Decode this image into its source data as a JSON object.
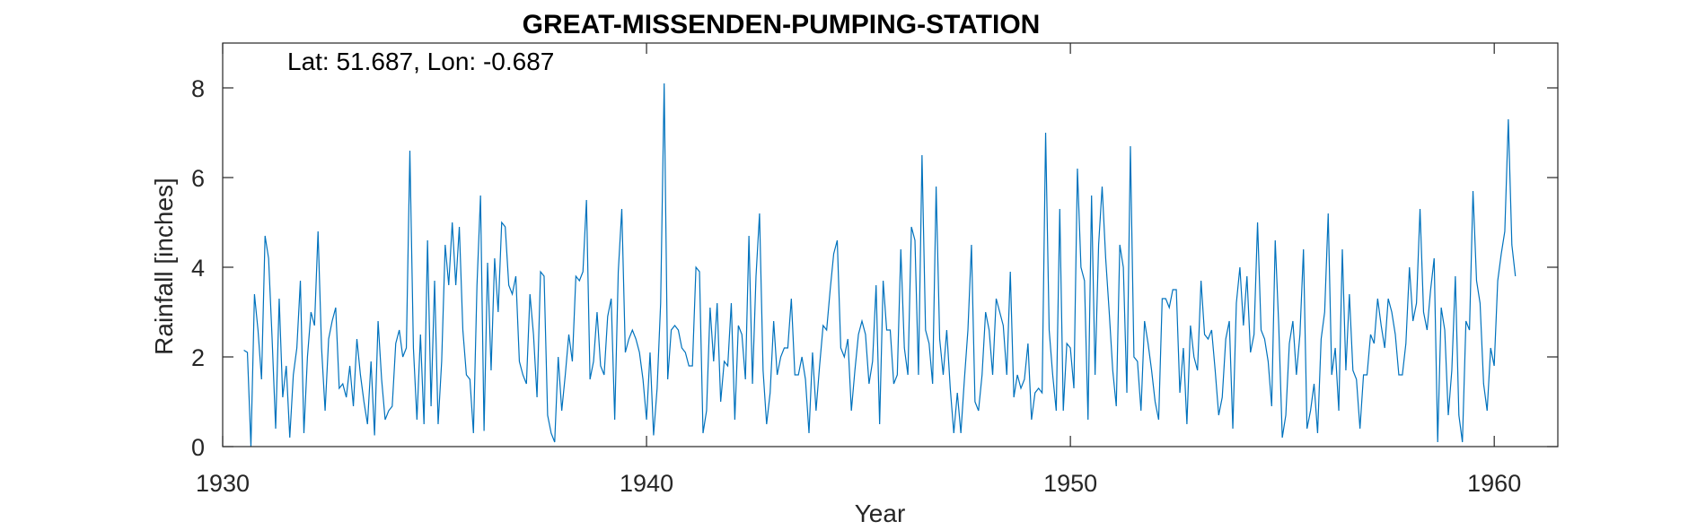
{
  "chart_data": {
    "type": "line",
    "title": "GREAT-MISSENDEN-PUMPING-STATION",
    "xlabel": "Year",
    "ylabel": "Rainfall [inches]",
    "annotation": "Lat: 51.687, Lon: -0.687",
    "xlim": [
      1930,
      1961.5
    ],
    "ylim": [
      0,
      9
    ],
    "xticks": [
      1930,
      1940,
      1950,
      1960
    ],
    "yticks": [
      0,
      2,
      4,
      6,
      8
    ],
    "grid": false,
    "box": true,
    "x_start": 1930.5,
    "x_step": 0.08333,
    "series": [
      {
        "color": "#0072BD",
        "values": [
          2.15,
          2.1,
          0.0,
          3.4,
          2.6,
          1.5,
          4.7,
          4.2,
          2.4,
          0.4,
          3.3,
          1.1,
          1.8,
          0.2,
          1.6,
          2.2,
          3.7,
          0.3,
          2.0,
          3.0,
          2.7,
          4.8,
          2.2,
          0.8,
          2.4,
          2.8,
          3.1,
          1.3,
          1.4,
          1.1,
          1.8,
          0.9,
          2.4,
          1.6,
          1.0,
          0.5,
          1.9,
          0.25,
          2.8,
          1.5,
          0.6,
          0.8,
          0.9,
          2.3,
          2.6,
          2.0,
          2.2,
          6.6,
          2.2,
          0.6,
          2.5,
          0.5,
          4.6,
          0.9,
          3.7,
          0.5,
          1.9,
          4.5,
          3.6,
          5.0,
          3.6,
          4.9,
          2.6,
          1.6,
          1.5,
          0.3,
          3.6,
          5.6,
          0.35,
          4.1,
          1.7,
          4.2,
          3.0,
          5.0,
          4.9,
          3.6,
          3.4,
          3.8,
          1.9,
          1.6,
          1.4,
          3.4,
          2.5,
          1.1,
          3.9,
          3.8,
          0.7,
          0.3,
          0.1,
          2.0,
          0.8,
          1.6,
          2.5,
          1.9,
          3.8,
          3.7,
          3.9,
          5.5,
          1.5,
          1.9,
          3.0,
          1.8,
          1.6,
          2.9,
          3.3,
          0.6,
          3.9,
          5.3,
          2.1,
          2.4,
          2.6,
          2.4,
          2.1,
          1.5,
          0.6,
          2.1,
          0.25,
          1.3,
          3.2,
          8.1,
          1.5,
          2.6,
          2.7,
          2.6,
          2.2,
          2.1,
          1.8,
          1.8,
          4.0,
          3.9,
          0.3,
          0.8,
          3.1,
          1.9,
          3.2,
          1.0,
          1.9,
          1.8,
          3.2,
          0.6,
          2.7,
          2.5,
          1.5,
          4.7,
          1.4,
          3.8,
          5.2,
          1.7,
          0.5,
          1.2,
          2.8,
          1.6,
          2.0,
          2.2,
          2.2,
          3.3,
          1.6,
          1.6,
          2.0,
          1.5,
          0.3,
          2.1,
          0.8,
          1.8,
          2.7,
          2.6,
          3.5,
          4.3,
          4.6,
          2.2,
          2.0,
          2.4,
          0.8,
          1.7,
          2.5,
          2.8,
          2.5,
          1.4,
          1.9,
          3.6,
          0.5,
          3.7,
          2.6,
          2.6,
          1.4,
          1.6,
          4.4,
          2.2,
          1.6,
          4.9,
          4.6,
          1.6,
          6.5,
          2.6,
          2.3,
          1.4,
          5.8,
          2.4,
          1.6,
          2.6,
          1.3,
          0.3,
          1.2,
          0.3,
          1.5,
          2.6,
          4.5,
          1.0,
          0.8,
          1.6,
          3.0,
          2.6,
          1.6,
          3.3,
          3.0,
          2.7,
          1.6,
          3.9,
          1.1,
          1.6,
          1.3,
          1.5,
          2.3,
          0.6,
          1.2,
          1.3,
          1.2,
          7.0,
          2.6,
          1.6,
          0.8,
          5.3,
          0.8,
          2.3,
          2.2,
          1.3,
          6.2,
          4.0,
          3.7,
          0.6,
          5.6,
          1.6,
          4.5,
          5.8,
          4.2,
          3.0,
          1.7,
          0.9,
          4.5,
          4.0,
          1.2,
          6.7,
          2.0,
          1.9,
          0.8,
          2.8,
          2.3,
          1.7,
          1.0,
          0.6,
          3.3,
          3.3,
          3.1,
          3.5,
          3.5,
          1.2,
          2.2,
          0.5,
          2.7,
          2.0,
          1.7,
          3.7,
          2.5,
          2.4,
          2.6,
          1.7,
          0.7,
          1.1,
          2.4,
          2.8,
          0.4,
          3.2,
          4.0,
          2.7,
          3.8,
          2.1,
          2.5,
          5.0,
          2.6,
          2.4,
          1.9,
          0.9,
          4.6,
          2.7,
          0.2,
          0.7,
          2.3,
          2.8,
          1.6,
          2.5,
          4.4,
          0.4,
          0.8,
          1.4,
          0.3,
          2.4,
          3.0,
          5.2,
          1.6,
          2.2,
          0.8,
          4.4,
          1.7,
          3.4,
          1.7,
          1.5,
          0.4,
          1.6,
          1.6,
          2.5,
          2.3,
          3.3,
          2.7,
          2.2,
          3.3,
          3.0,
          2.5,
          1.6,
          1.6,
          2.3,
          4.0,
          2.8,
          3.2,
          5.3,
          3.0,
          2.6,
          3.5,
          4.2,
          0.1,
          3.1,
          2.6,
          0.7,
          1.7,
          3.8,
          0.7,
          0.1,
          2.8,
          2.6,
          5.7,
          3.7,
          3.2,
          1.4,
          0.8,
          2.2,
          1.8,
          3.7,
          4.3,
          4.8,
          7.3,
          4.5,
          3.8
        ]
      }
    ]
  }
}
